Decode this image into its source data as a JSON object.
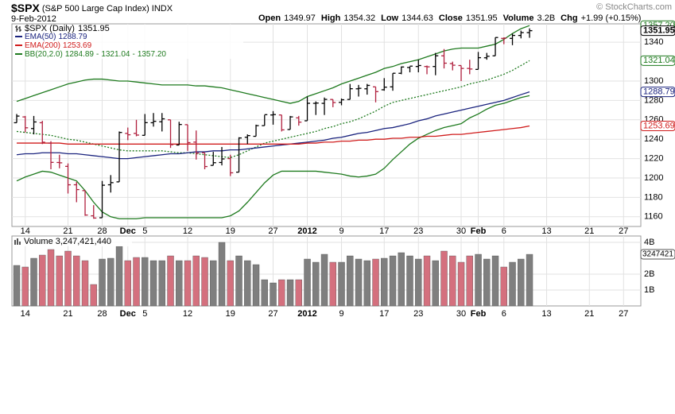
{
  "chart_data": [
    {
      "type": "ohlc",
      "title": "$SPX",
      "subtitle": "(S&P 500 Large Cap Index)",
      "exchange": "INDX",
      "date": "9-Feb-2012",
      "watermark": "© StockCharts.com",
      "quote": {
        "open_label": "Open",
        "high_label": "High",
        "low_label": "Low",
        "close_label": "Close",
        "volume_label": "Volume",
        "volume": "3.2B",
        "change_label": "Chg",
        "change": "+1.99 (+0.15%)"
      },
      "xlim": [
        -0.56,
        73.02
      ],
      "xticks": [
        {
          "value": 1,
          "label": "14"
        },
        {
          "value": 6,
          "label": "21"
        },
        {
          "value": 10,
          "label": "28"
        },
        {
          "value": 13,
          "label": "Dec"
        },
        {
          "value": 15,
          "label": "5"
        },
        {
          "value": 20,
          "label": "12"
        },
        {
          "value": 25,
          "label": "19"
        },
        {
          "value": 30,
          "label": "27"
        },
        {
          "value": 34,
          "label": "2012"
        },
        {
          "value": 38,
          "label": "9"
        },
        {
          "value": 43,
          "label": "17"
        },
        {
          "value": 47,
          "label": "23"
        },
        {
          "value": 52,
          "label": "30"
        },
        {
          "value": 54,
          "label": "Feb"
        },
        {
          "value": 57,
          "label": "6"
        },
        {
          "value": 62,
          "label": "13"
        },
        {
          "value": 67,
          "label": "21"
        },
        {
          "value": 71,
          "label": "27"
        }
      ],
      "ylim": [
        1150,
        1359
      ],
      "yticks": [
        1160,
        1180,
        1200,
        1220,
        1240,
        1260,
        1280,
        1300,
        1340
      ],
      "grid": true,
      "up_color": "#000000",
      "down_color": "#b0203e",
      "series": [
        {
          "name": "$SPX (Daily)",
          "open": [
            1257,
            1263,
            1251,
            1257,
            1236,
            1216,
            1212,
            1193,
            1187,
            1161,
            1159,
            1193,
            1196,
            1246,
            1246,
            1244,
            1257,
            1258,
            1260,
            1234,
            1255,
            1237,
            1226,
            1213,
            1216,
            1220,
            1206,
            1242,
            1243,
            1254,
            1265,
            1265,
            1250,
            1262,
            1259,
            1277,
            1277,
            1281,
            1278,
            1281,
            1292,
            1292,
            1294,
            1291,
            1294,
            1308,
            1314,
            1315,
            1315,
            1315,
            1326,
            1318,
            1316,
            1313,
            1312,
            1324,
            1326,
            1344,
            1344,
            1347,
            1349.97
          ],
          "high": [
            1266,
            1264,
            1264,
            1259,
            1238,
            1224,
            1215,
            1196,
            1187,
            1172,
            1197,
            1203,
            1248,
            1252,
            1260,
            1266,
            1267,
            1267,
            1260,
            1258,
            1255,
            1249,
            1226,
            1227,
            1232,
            1224,
            1242,
            1245,
            1255,
            1265,
            1269,
            1265,
            1264,
            1264,
            1284,
            1279,
            1283,
            1281,
            1282,
            1297,
            1296,
            1297,
            1294,
            1303,
            1308,
            1315,
            1315,
            1322,
            1316,
            1329,
            1333,
            1320,
            1316,
            1322,
            1330,
            1329,
            1345,
            1345,
            1349,
            1352,
            1354.32
          ],
          "low": [
            1257,
            1247,
            1245,
            1235,
            1209,
            1210,
            1184,
            1175,
            1161,
            1158,
            1159,
            1185,
            1196,
            1239,
            1243,
            1244,
            1253,
            1248,
            1231,
            1234,
            1228,
            1219,
            1209,
            1213,
            1213,
            1202,
            1206,
            1235,
            1243,
            1254,
            1255,
            1248,
            1250,
            1254,
            1259,
            1265,
            1265,
            1273,
            1275,
            1281,
            1284,
            1286,
            1278,
            1290,
            1290,
            1307,
            1309,
            1309,
            1307,
            1306,
            1313,
            1311,
            1300,
            1307,
            1312,
            1322,
            1326,
            1338,
            1337,
            1344,
            1344.63
          ],
          "close": [
            1263.85,
            1251.78,
            1257.81,
            1236.91,
            1216.13,
            1215.65,
            1192.98,
            1188.04,
            1161.79,
            1158.67,
            1192.55,
            1195.19,
            1246.96,
            1244.58,
            1244.28,
            1257.08,
            1258.47,
            1261.01,
            1234.35,
            1255.19,
            1236.47,
            1225.73,
            1211.82,
            1215.75,
            1219.66,
            1205.35,
            1241.3,
            1243.72,
            1254,
            1265.33,
            1265.43,
            1249.64,
            1263.02,
            1257.6,
            1277.06,
            1277.3,
            1281.06,
            1277.81,
            1280.7,
            1292.08,
            1292.48,
            1295.5,
            1289.09,
            1293.67,
            1308.04,
            1314.5,
            1315.38,
            1316,
            1314.65,
            1326.06,
            1318.43,
            1316.33,
            1313.01,
            1312.41,
            1324.09,
            1325.54,
            1344.9,
            1344.33,
            1347.05,
            1349.96,
            1351.95
          ]
        },
        {
          "name": "EMA(50)",
          "color": "#1a237e",
          "values": [
            1224,
            1225,
            1225,
            1226,
            1226,
            1226,
            1225,
            1225,
            1224,
            1223,
            1222,
            1221,
            1220,
            1220,
            1221,
            1222,
            1223,
            1224,
            1225,
            1225,
            1226,
            1227,
            1227,
            1228,
            1228,
            1229,
            1229,
            1230,
            1231,
            1232,
            1233,
            1234,
            1235,
            1236,
            1237,
            1238,
            1239,
            1241,
            1242,
            1244,
            1246,
            1247,
            1249,
            1251,
            1252,
            1254,
            1256,
            1259,
            1261,
            1264,
            1266,
            1268,
            1270,
            1272,
            1274,
            1276,
            1278,
            1280,
            1283,
            1286,
            1288.79
          ]
        },
        {
          "name": "EMA(200)",
          "color": "#d01c1c",
          "values": [
            1236,
            1236,
            1236,
            1236,
            1236,
            1236,
            1235,
            1235,
            1235,
            1235,
            1235,
            1235,
            1235,
            1235,
            1235,
            1235,
            1235,
            1235,
            1235,
            1235,
            1235,
            1235,
            1235,
            1235,
            1235,
            1235,
            1235,
            1235,
            1235,
            1235,
            1235,
            1235,
            1235,
            1235,
            1236,
            1236,
            1237,
            1237,
            1238,
            1238,
            1239,
            1239,
            1240,
            1240,
            1241,
            1241,
            1242,
            1242,
            1243,
            1243,
            1244,
            1245,
            1245,
            1246,
            1247,
            1248,
            1249,
            1250,
            1251,
            1252,
            1253.69
          ]
        },
        {
          "name": "BB(20,2.0)",
          "color": "#1e7a1e",
          "separator": "-",
          "upper_last_label": "1357.20",
          "lower": [
            1197,
            1201,
            1204,
            1207,
            1206,
            1203,
            1200,
            1197,
            1187,
            1175,
            1165,
            1160,
            1158,
            1158,
            1158,
            1159,
            1159,
            1159,
            1159,
            1159,
            1159,
            1159,
            1159,
            1159,
            1159,
            1161,
            1166,
            1175,
            1185,
            1195,
            1203,
            1207,
            1207,
            1207,
            1207,
            1207,
            1206,
            1205,
            1204,
            1202,
            1201,
            1202,
            1204,
            1210,
            1219,
            1227,
            1235,
            1241,
            1245,
            1249,
            1252,
            1254,
            1256,
            1262,
            1266,
            1271,
            1275,
            1277,
            1280,
            1283,
            1284.89
          ],
          "middle": [
            1248,
            1247,
            1246,
            1245,
            1244,
            1242,
            1240,
            1239,
            1237,
            1235,
            1233,
            1231,
            1229,
            1228,
            1228,
            1228,
            1228,
            1228,
            1227,
            1226,
            1226,
            1225,
            1224,
            1223,
            1222,
            1221,
            1224,
            1228,
            1232,
            1236,
            1238,
            1240,
            1242,
            1244,
            1246,
            1248,
            1251,
            1253,
            1256,
            1258,
            1261,
            1265,
            1269,
            1274,
            1278,
            1280,
            1282,
            1284,
            1286,
            1288,
            1290,
            1292,
            1294,
            1297,
            1299,
            1301,
            1304,
            1307,
            1311,
            1316,
            1321.04
          ],
          "upper": [
            1279,
            1282,
            1285,
            1288,
            1291,
            1294,
            1297,
            1299,
            1301,
            1302,
            1302,
            1301,
            1300,
            1300,
            1299,
            1298,
            1297,
            1296,
            1296,
            1296,
            1296,
            1295,
            1295,
            1294,
            1293,
            1291,
            1289,
            1287,
            1285,
            1283,
            1281,
            1279,
            1277,
            1279,
            1284,
            1287,
            1290,
            1293,
            1297,
            1300,
            1303,
            1306,
            1309,
            1313,
            1315,
            1318,
            1320,
            1322,
            1325,
            1328,
            1331,
            1333,
            1334,
            1334,
            1334,
            1336,
            1338,
            1343,
            1349,
            1354,
            1357.2
          ]
        }
      ]
    },
    {
      "type": "bar",
      "title": "Volume",
      "value_label": "3,247,421,440",
      "last_label": "3247421",
      "xlim": [
        -0.56,
        73.02
      ],
      "xticks": [
        {
          "value": 1,
          "label": "14"
        },
        {
          "value": 6,
          "label": "21"
        },
        {
          "value": 10,
          "label": "28"
        },
        {
          "value": 13,
          "label": "Dec"
        },
        {
          "value": 15,
          "label": "5"
        },
        {
          "value": 20,
          "label": "12"
        },
        {
          "value": 25,
          "label": "19"
        },
        {
          "value": 30,
          "label": "27"
        },
        {
          "value": 34,
          "label": "2012"
        },
        {
          "value": 38,
          "label": "9"
        },
        {
          "value": 43,
          "label": "17"
        },
        {
          "value": 47,
          "label": "23"
        },
        {
          "value": 52,
          "label": "30"
        },
        {
          "value": 54,
          "label": "Feb"
        },
        {
          "value": 57,
          "label": "6"
        },
        {
          "value": 62,
          "label": "13"
        },
        {
          "value": 67,
          "label": "21"
        },
        {
          "value": 71,
          "label": "27"
        }
      ],
      "ylim": [
        0,
        4400000000
      ],
      "yticks": [
        {
          "value": 1000000000,
          "label": "1B"
        },
        {
          "value": 2000000000,
          "label": "2B"
        },
        {
          "value": 4000000000,
          "label": "4B"
        }
      ],
      "grid": true,
      "up_color": "#7f7f7f",
      "down_color": "#d4707e",
      "values": [
        2550000000,
        2450000000,
        3000000000,
        3200000000,
        3550000000,
        3150000000,
        3450000000,
        3150000000,
        2850000000,
        1350000000,
        2950000000,
        3000000000,
        3750000000,
        2850000000,
        3050000000,
        3050000000,
        2850000000,
        2850000000,
        3150000000,
        2850000000,
        2850000000,
        3150000000,
        3050000000,
        2850000000,
        4000000000,
        2850000000,
        3150000000,
        2850000000,
        2600000000,
        1650000000,
        1450000000,
        1650000000,
        1650000000,
        1650000000,
        2950000000,
        2750000000,
        3250000000,
        2750000000,
        2750000000,
        3150000000,
        2950000000,
        2850000000,
        2950000000,
        3000000000,
        3150000000,
        3350000000,
        3150000000,
        2950000000,
        3150000000,
        2850000000,
        3450000000,
        3150000000,
        2750000000,
        3150000000,
        3250000000,
        2950000000,
        3150000000,
        2450000000,
        2750000000,
        2950000000,
        3247421440
      ]
    }
  ]
}
